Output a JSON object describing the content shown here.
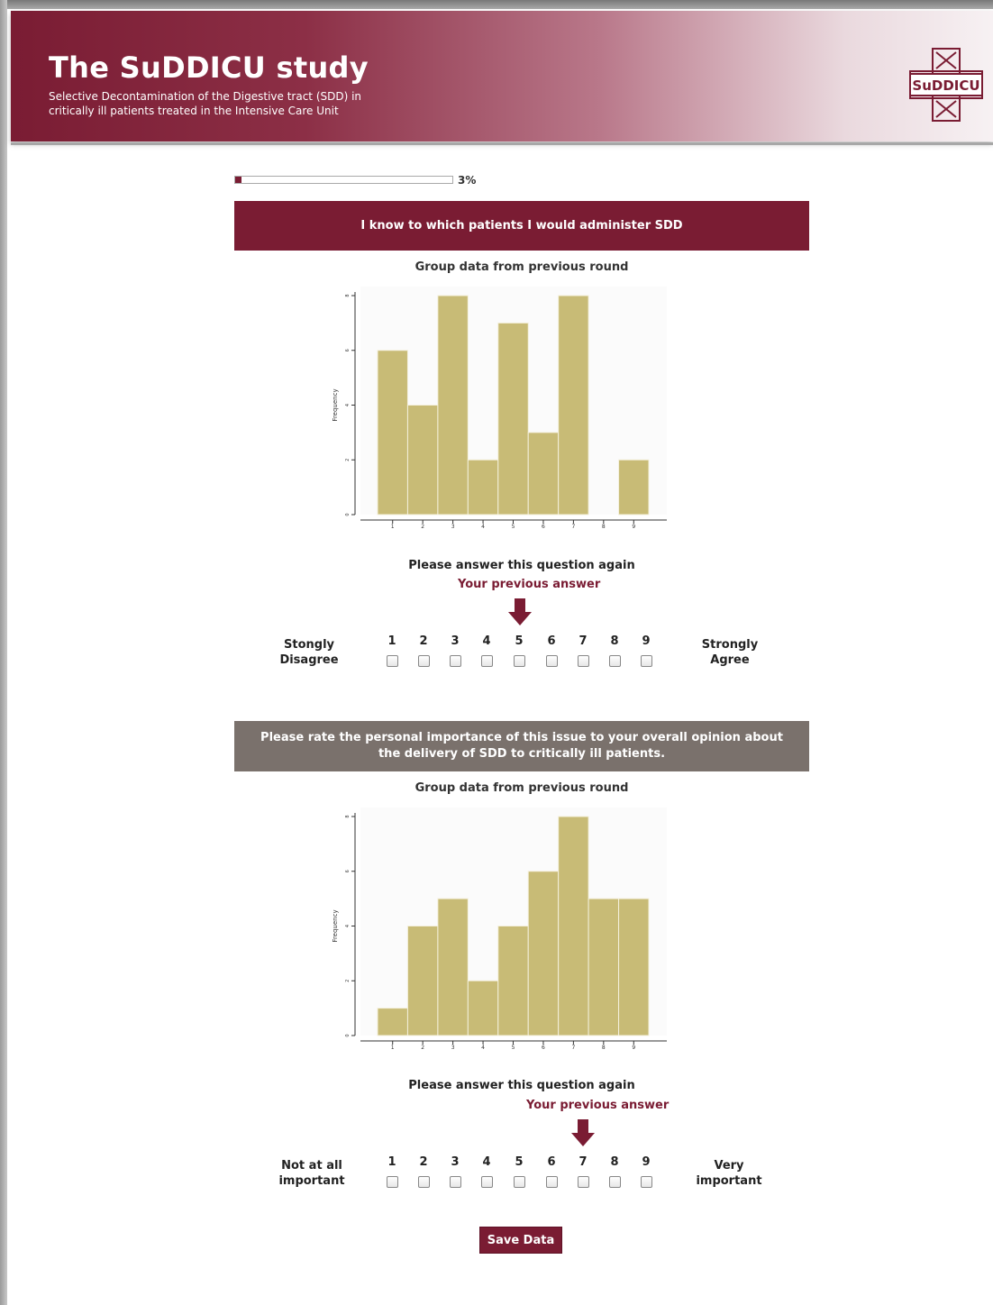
{
  "header": {
    "title": "The SuDDICU study",
    "subtitle_line1": "Selective Decontamination of the Digestive tract (SDD) in",
    "subtitle_line2": "critically ill patients treated in the Intensive Care Unit",
    "logo_text": "SuDDICU"
  },
  "progress": {
    "value": 0.03,
    "label": "3%"
  },
  "colors": {
    "brand": "#7a1c33",
    "gray_banner": "#7a716c",
    "bar": "#c8bb76"
  },
  "questions": [
    {
      "banner": "I know to which patients I would administer SDD",
      "group_title": "Group data from previous round",
      "again_text": "Please answer this question again",
      "previous_label": "Your previous answer",
      "previous_answer": 5,
      "scale_left": "Stongly Disagree",
      "scale_right": "Strongly Agree",
      "scale": [
        "1",
        "2",
        "3",
        "4",
        "5",
        "6",
        "7",
        "8",
        "9"
      ]
    },
    {
      "banner_line1": "Please rate the personal importance of this issue to your overall opinion about",
      "banner_line2": "the delivery of SDD to critically ill patients.",
      "group_title": "Group data from previous round",
      "again_text": "Please answer this question again",
      "previous_label": "Your previous answer",
      "previous_answer": 7,
      "scale_left": "Not at all important",
      "scale_right": "Very important",
      "scale": [
        "1",
        "2",
        "3",
        "4",
        "5",
        "6",
        "7",
        "8",
        "9"
      ]
    }
  ],
  "chart_data": [
    {
      "type": "bar",
      "categories": [
        "1",
        "2",
        "3",
        "4",
        "5",
        "6",
        "7",
        "8",
        "9"
      ],
      "values": [
        6,
        4,
        8,
        2,
        7,
        3,
        8,
        0,
        2
      ],
      "ylabel": "Frequency",
      "yticks": [
        "0",
        "2",
        "4",
        "6",
        "8"
      ],
      "ylim": [
        0,
        8
      ],
      "grid": false
    },
    {
      "type": "bar",
      "categories": [
        "1",
        "2",
        "3",
        "4",
        "5",
        "6",
        "7",
        "8",
        "9"
      ],
      "values": [
        1,
        4,
        5,
        2,
        4,
        6,
        8,
        5,
        5
      ],
      "ylabel": "Frequency",
      "yticks": [
        "0",
        "2",
        "4",
        "6",
        "8"
      ],
      "ylim": [
        0,
        8
      ],
      "grid": false
    }
  ],
  "save_button": "Save Data"
}
